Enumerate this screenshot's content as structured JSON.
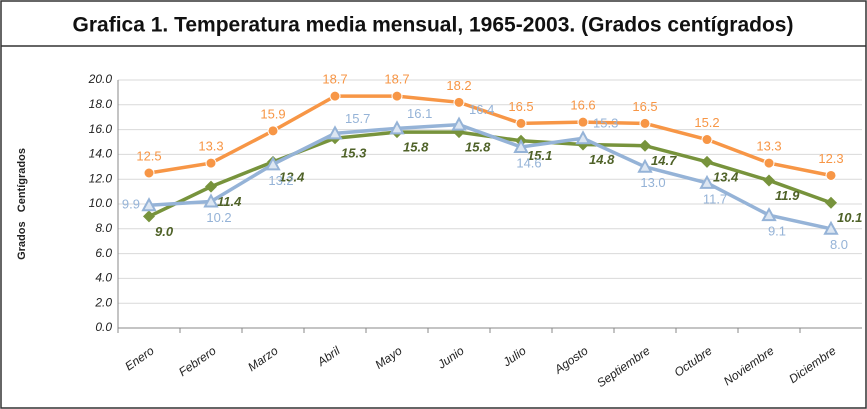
{
  "chart_data": {
    "type": "line",
    "title": "Grafica 1. Temperatura media mensual, 1965-2003. (Grados centígrados)",
    "y_label": "Grados   Centígrados",
    "categories": [
      "Enero",
      "Febrero",
      "Marzo",
      "Abril",
      "Mayo",
      "Junio",
      "Julio",
      "Agosto",
      "Septiembre",
      "Octubre",
      "Noviembre",
      "Diciembre"
    ],
    "series": [
      {
        "color": "#f79646",
        "marker": "circle",
        "values": [
          12.5,
          13.3,
          15.9,
          18.7,
          18.7,
          18.2,
          16.5,
          16.6,
          16.5,
          15.2,
          13.3,
          12.3
        ],
        "value_labels": [
          "12.5",
          "13.3",
          "15.9",
          "18.7",
          "18.7",
          "18.2",
          "16.5",
          "16.6",
          "16.5",
          "15.2",
          "13.3",
          "12.3"
        ]
      },
      {
        "color": "#77933c",
        "marker": "diamond",
        "values": [
          9.0,
          11.4,
          13.4,
          15.3,
          15.8,
          15.8,
          15.1,
          14.8,
          14.7,
          13.4,
          11.9,
          10.1
        ],
        "value_labels": [
          "9.0",
          "11.4",
          "13.4",
          "15.3",
          "15.8",
          "15.8",
          "15.1",
          "14.8",
          "14.7",
          "13.4",
          "11.9",
          "10.1"
        ]
      },
      {
        "color": "#95b3d7",
        "marker": "triangle",
        "values": [
          9.9,
          10.2,
          13.2,
          15.7,
          16.1,
          16.4,
          14.6,
          15.3,
          13.0,
          11.7,
          9.1,
          8.0
        ],
        "value_labels": [
          "9.9",
          "10.2",
          "13.2",
          "15.7",
          "16.1",
          "16.4",
          "14.6",
          "15.3",
          "13.0",
          "11.7",
          "9.1",
          "8.0"
        ]
      }
    ],
    "ylim": [
      0,
      20
    ],
    "yticks": [
      {
        "value": 0,
        "label": "0.0"
      },
      {
        "value": 2,
        "label": "2.0"
      },
      {
        "value": 4,
        "label": "4.0"
      },
      {
        "value": 6,
        "label": "6.0"
      },
      {
        "value": 8,
        "label": "8.0"
      },
      {
        "value": 10,
        "label": "10.0"
      },
      {
        "value": 12,
        "label": "12.0"
      },
      {
        "value": 14,
        "label": "14.0"
      },
      {
        "value": 16,
        "label": "16.0"
      },
      {
        "value": 18,
        "label": "18.0"
      },
      {
        "value": 20,
        "label": "20.0"
      }
    ],
    "grid": true
  }
}
